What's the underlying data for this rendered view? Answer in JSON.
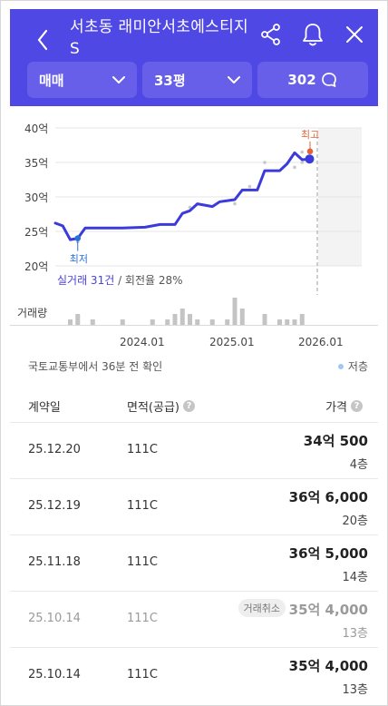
{
  "header": {
    "title": "서초동 래미안서초에스티지S",
    "filters": {
      "trade_type": "매매",
      "size": "33평",
      "comment_count": "302"
    },
    "colors": {
      "brand": "#5048e5",
      "select_bg": "#675fe9"
    },
    "icons": [
      "back-icon",
      "share-icon",
      "bell-icon",
      "close-icon",
      "chevron-down-icon",
      "comment-icon"
    ]
  },
  "chart_data": {
    "type": "line",
    "y_tick_labels": [
      "40억",
      "35억",
      "30억",
      "25억",
      "20억"
    ],
    "x_tick_labels": [
      "2024.01",
      "2025.01",
      "2026.01"
    ],
    "ylim": [
      20,
      40
    ],
    "series": [
      {
        "points": [
          [
            "2023.03",
            26.2
          ],
          [
            "2023.04",
            25.8
          ],
          [
            "2023.05",
            23.8
          ],
          [
            "2023.06",
            24.0
          ],
          [
            "2023.07",
            25.5
          ],
          [
            "2023.09",
            25.5
          ],
          [
            "2023.12",
            25.5
          ],
          [
            "2024.03",
            25.6
          ],
          [
            "2024.05",
            26.0
          ],
          [
            "2024.07",
            26.0
          ],
          [
            "2024.08",
            27.6
          ],
          [
            "2024.09",
            28.0
          ],
          [
            "2024.10",
            29.0
          ],
          [
            "2024.12",
            28.6
          ],
          [
            "2025.01",
            29.3
          ],
          [
            "2025.03",
            29.6
          ],
          [
            "2025.04",
            31.0
          ],
          [
            "2025.06",
            31.0
          ],
          [
            "2025.07",
            33.8
          ],
          [
            "2025.09",
            33.8
          ],
          [
            "2025.10",
            34.8
          ],
          [
            "2025.11",
            36.4
          ],
          [
            "2025.12",
            35.4
          ],
          [
            "2026.01",
            35.5
          ]
        ]
      }
    ],
    "scatter": [
      [
        "2023.06",
        23.5
      ],
      [
        "2024.09",
        28.5
      ],
      [
        "2025.03",
        29.0
      ],
      [
        "2025.05",
        31.5
      ],
      [
        "2025.07",
        35.0
      ],
      [
        "2025.11",
        34.3
      ],
      [
        "2025.12",
        35.0
      ],
      [
        "2025.12",
        36.5
      ]
    ],
    "markers": {
      "high_label": "최고",
      "low_label": "최저",
      "high_value": 36.6,
      "low_value": 24.0
    },
    "volume_label": "거래량",
    "volume": [
      [
        "2023.05",
        1
      ],
      [
        "2023.06",
        2
      ],
      [
        "2023.08",
        1
      ],
      [
        "2023.12",
        1
      ],
      [
        "2024.04",
        1
      ],
      [
        "2024.06",
        1
      ],
      [
        "2024.07",
        2
      ],
      [
        "2024.08",
        3
      ],
      [
        "2024.09",
        2
      ],
      [
        "2024.10",
        1
      ],
      [
        "2024.12",
        1
      ],
      [
        "2025.02",
        1
      ],
      [
        "2025.03",
        5
      ],
      [
        "2025.04",
        3
      ],
      [
        "2025.07",
        2
      ],
      [
        "2025.09",
        1
      ],
      [
        "2025.10",
        1
      ],
      [
        "2025.11",
        1
      ],
      [
        "2025.12",
        2
      ]
    ],
    "colors": {
      "line": "#3b3bdc",
      "high": "#e0633c",
      "low": "#2b6fdc",
      "scatter": "#c8c8c8",
      "volume": "#c4c4c4"
    }
  },
  "stats": {
    "deals": "실거래 31건",
    "separator": " / ",
    "turnover": "회전율 28%"
  },
  "source": {
    "text": "국토교통부에서 36분 전 확인",
    "legend": "저층",
    "legend_color": "#9ec9f5"
  },
  "table": {
    "headers": {
      "date": "계약일",
      "area": "면적(공급)",
      "price": "가격"
    },
    "rows": [
      {
        "date": "25.12.20",
        "area": "111C",
        "price": "34억 500",
        "floor": "4층",
        "badge": ""
      },
      {
        "date": "25.12.19",
        "area": "111C",
        "price": "36억 6,000",
        "floor": "20층",
        "badge": ""
      },
      {
        "date": "25.11.18",
        "area": "111C",
        "price": "36억 5,000",
        "floor": "14층",
        "badge": ""
      },
      {
        "date": "25.10.14",
        "area": "111C",
        "price": "35억 4,000",
        "floor": "13층",
        "badge": "거래취소"
      },
      {
        "date": "25.10.14",
        "area": "111C",
        "price": "35억 4,000",
        "floor": "13층",
        "badge": ""
      }
    ]
  }
}
